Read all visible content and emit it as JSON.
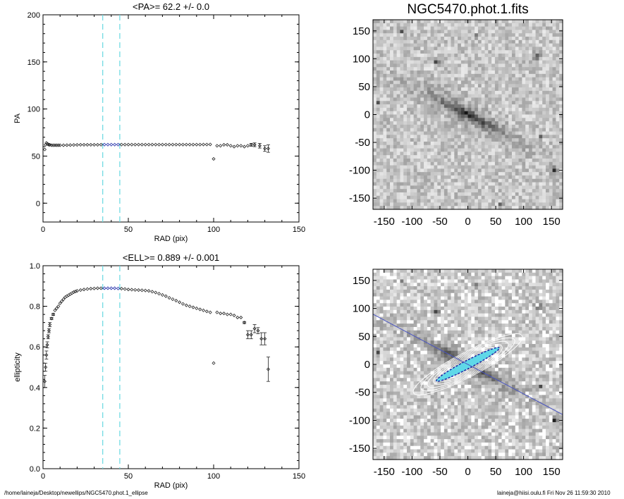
{
  "footer": {
    "path": "/home/laineja/Desktop/newellips/NGC5470.phot.1_ellipse",
    "stamp": "laineja@hiisi.oulu.fi  Fri Nov 26 11:59:30 2010"
  },
  "colors": {
    "marker": "#222222",
    "highlight": "#1f2aa8",
    "dashed": "#66d9e0",
    "fit_line": "#4a55c0",
    "contour": "#ffffff",
    "core": "#5fd8e8"
  },
  "chart_data": [
    {
      "type": "scatter",
      "title": "<PA>=  62.2 +/-   0.0",
      "xlabel": "RAD (pix)",
      "ylabel": "PA",
      "xlim": [
        0,
        150
      ],
      "ylim": [
        -20,
        200
      ],
      "xticks": [
        0,
        50,
        100,
        150
      ],
      "yticks": [
        0,
        50,
        100,
        150,
        200
      ],
      "vlines": [
        35,
        45
      ],
      "highlight_range": [
        35,
        45
      ],
      "series": [
        {
          "x": [
            1,
            1.5,
            2,
            2.5,
            3,
            3.5,
            4,
            5,
            6,
            7,
            8,
            9,
            10,
            12,
            14,
            16,
            18,
            20,
            22,
            24,
            26,
            28,
            30,
            32,
            34,
            36,
            38,
            40,
            42,
            44,
            46,
            48,
            50,
            52,
            54,
            56,
            58,
            60,
            62,
            64,
            66,
            68,
            70,
            72,
            74,
            76,
            78,
            80,
            82,
            84,
            86,
            88,
            90,
            92,
            94,
            96,
            98,
            100,
            102,
            104,
            106,
            108,
            110,
            112,
            114,
            116,
            118,
            120,
            122,
            124,
            127,
            130,
            132
          ],
          "y": [
            57,
            62,
            64,
            63,
            62.5,
            62,
            62,
            61.5,
            61.5,
            61.5,
            61.5,
            61.5,
            61.5,
            61.5,
            61.6,
            61.7,
            61.8,
            61.9,
            62,
            62,
            62,
            62,
            62,
            62,
            62.1,
            62.2,
            62.2,
            62.2,
            62.2,
            62.2,
            62.2,
            62.2,
            62.2,
            62.2,
            62.2,
            62.2,
            62.2,
            62.2,
            62.2,
            62.2,
            62.2,
            62.2,
            62.2,
            62.2,
            62.2,
            62.2,
            62.2,
            62.2,
            62.2,
            62.2,
            62.2,
            62.2,
            62.2,
            62.2,
            62.3,
            62.3,
            62.4,
            47,
            61,
            61,
            62,
            62,
            61,
            60,
            61,
            61,
            60,
            61,
            62,
            62,
            61,
            58,
            58
          ],
          "err": [
            0,
            0,
            0,
            0,
            0,
            0,
            0,
            0,
            0,
            0,
            0,
            0,
            0,
            0,
            0,
            0,
            0,
            0,
            0,
            0,
            0,
            0,
            0,
            0,
            0,
            0,
            0,
            0,
            0,
            0,
            0,
            0,
            0,
            0,
            0,
            0,
            0,
            0,
            0,
            0,
            0,
            0,
            0,
            0,
            0,
            0,
            0,
            0,
            0,
            0,
            0,
            0,
            0,
            0,
            0,
            0,
            0,
            0,
            0,
            0,
            0,
            0,
            0,
            0,
            0,
            0,
            0,
            0,
            1.5,
            2,
            2.5,
            3,
            4
          ]
        }
      ]
    },
    {
      "type": "scatter",
      "title": "<ELL>= 0.889 +/-  0.001",
      "xlabel": "RAD (pix)",
      "ylabel": "ellipticity",
      "xlim": [
        0,
        150
      ],
      "ylim": [
        0.0,
        1.0
      ],
      "xticks": [
        0,
        50,
        100,
        150
      ],
      "yticks": [
        0.0,
        0.2,
        0.4,
        0.6,
        0.8,
        1.0
      ],
      "ytick_labels": [
        "0.0",
        "0.2",
        "0.4",
        "0.6",
        "0.8",
        "1.0"
      ],
      "vlines": [
        35,
        45
      ],
      "highlight_range": [
        35,
        45
      ],
      "series": [
        {
          "x": [
            1,
            1.5,
            2,
            2.5,
            3,
            3.5,
            4,
            5,
            6,
            7,
            8,
            9,
            10,
            11,
            12,
            13,
            14,
            15,
            16,
            17,
            18,
            19,
            20,
            22,
            24,
            26,
            28,
            30,
            32,
            34,
            36,
            38,
            40,
            42,
            44,
            46,
            48,
            50,
            52,
            54,
            56,
            58,
            60,
            62,
            64,
            66,
            68,
            70,
            72,
            74,
            76,
            78,
            80,
            82,
            84,
            86,
            88,
            90,
            92,
            94,
            96,
            98,
            100,
            102,
            104,
            106,
            108,
            110,
            112,
            114,
            116,
            118,
            120,
            122,
            124,
            126,
            128,
            130,
            132
          ],
          "y": [
            0.43,
            0.5,
            0.56,
            0.61,
            0.65,
            0.68,
            0.71,
            0.74,
            0.76,
            0.78,
            0.79,
            0.8,
            0.815,
            0.825,
            0.835,
            0.845,
            0.85,
            0.855,
            0.86,
            0.865,
            0.87,
            0.873,
            0.876,
            0.88,
            0.883,
            0.885,
            0.887,
            0.888,
            0.889,
            0.889,
            0.889,
            0.889,
            0.889,
            0.889,
            0.888,
            0.887,
            0.885,
            0.883,
            0.882,
            0.881,
            0.88,
            0.879,
            0.878,
            0.876,
            0.872,
            0.868,
            0.862,
            0.856,
            0.85,
            0.842,
            0.835,
            0.828,
            0.82,
            0.812,
            0.805,
            0.8,
            0.795,
            0.79,
            0.785,
            0.78,
            0.775,
            0.77,
            0.52,
            0.77,
            0.765,
            0.765,
            0.76,
            0.76,
            0.755,
            0.745,
            0.745,
            0.72,
            0.66,
            0.66,
            0.69,
            0.68,
            0.64,
            0.64,
            0.49
          ],
          "err": [
            0.03,
            0.02,
            0.02,
            0.015,
            0.01,
            0.01,
            0.01,
            0.005,
            0.005,
            0,
            0,
            0,
            0,
            0,
            0,
            0,
            0,
            0,
            0,
            0,
            0,
            0,
            0,
            0,
            0,
            0,
            0,
            0,
            0,
            0,
            0,
            0,
            0,
            0,
            0,
            0,
            0,
            0,
            0,
            0,
            0,
            0,
            0,
            0,
            0,
            0,
            0,
            0,
            0,
            0,
            0,
            0,
            0,
            0,
            0,
            0,
            0,
            0,
            0,
            0,
            0,
            0,
            0,
            0,
            0,
            0,
            0,
            0,
            0,
            0,
            0,
            0.005,
            0.02,
            0.02,
            0.02,
            0.015,
            0.03,
            0.03,
            0.06
          ]
        }
      ]
    },
    {
      "type": "heatmap",
      "title": "NGC5470.phot.1.fits",
      "xlim": [
        -170,
        170
      ],
      "ylim": [
        -170,
        170
      ],
      "xticks": [
        -150,
        -100,
        -50,
        0,
        50,
        100,
        150
      ],
      "yticks": [
        -150,
        -100,
        -50,
        0,
        50,
        100,
        150
      ],
      "galaxy": {
        "pa_deg": 62.2,
        "ellipticity": 0.889,
        "extent": 110
      }
    },
    {
      "type": "heatmap",
      "title": "",
      "xlim": [
        -170,
        170
      ],
      "ylim": [
        -170,
        170
      ],
      "xticks": [
        -150,
        -100,
        -50,
        0,
        50,
        100,
        150
      ],
      "yticks": [
        -150,
        -100,
        -50,
        0,
        50,
        100,
        150
      ],
      "galaxy": {
        "pa_deg": 62.2,
        "ellipticity": 0.889,
        "extent": 110
      },
      "contours": true,
      "fit_line": true
    }
  ]
}
